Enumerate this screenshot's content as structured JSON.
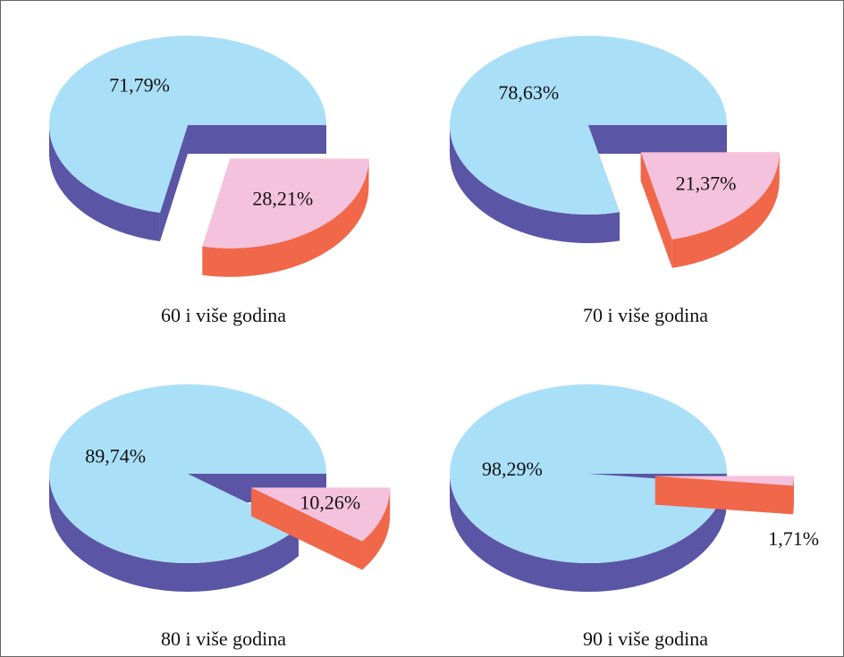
{
  "chart_data": [
    {
      "type": "pie",
      "title": "60 i više godina",
      "values": [
        71.79,
        28.21
      ],
      "value_labels": [
        "71,79%",
        "28,21%"
      ],
      "colors": [
        "#aadff8",
        "#f5c2de"
      ],
      "side_colors": [
        "#5a55a5",
        "#f0674a"
      ]
    },
    {
      "type": "pie",
      "title": "70 i više godina",
      "values": [
        78.63,
        21.37
      ],
      "value_labels": [
        "78,63%",
        "21,37%"
      ],
      "colors": [
        "#aadff8",
        "#f5c2de"
      ],
      "side_colors": [
        "#5a55a5",
        "#f0674a"
      ]
    },
    {
      "type": "pie",
      "title": "80 i više godina",
      "values": [
        89.74,
        10.26
      ],
      "value_labels": [
        "89,74%",
        "10,26%"
      ],
      "colors": [
        "#aadff8",
        "#f5c2de"
      ],
      "side_colors": [
        "#5a55a5",
        "#f0674a"
      ]
    },
    {
      "type": "pie",
      "title": "90 i više godina",
      "values": [
        98.29,
        1.71
      ],
      "value_labels": [
        "98,29%",
        "1,71%"
      ],
      "colors": [
        "#aadff8",
        "#f5c2de"
      ],
      "side_colors": [
        "#5a55a5",
        "#f0674a"
      ]
    }
  ]
}
